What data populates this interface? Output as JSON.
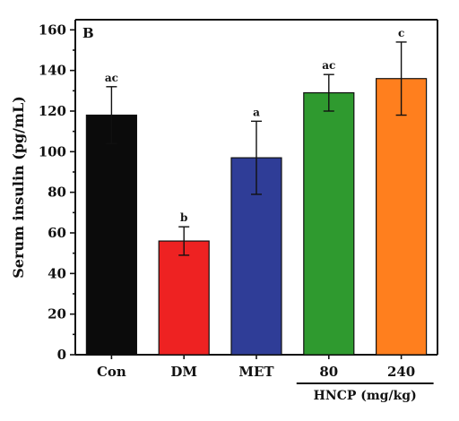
{
  "chart_data": {
    "type": "bar",
    "panel_label": "B",
    "categories": [
      "Con",
      "DM",
      "MET",
      "80",
      "240"
    ],
    "values": [
      118,
      56,
      97,
      129,
      136
    ],
    "errors": [
      14,
      7,
      18,
      9,
      18
    ],
    "significance_letters": [
      "ac",
      "b",
      "a",
      "ac",
      "c"
    ],
    "bar_colors": [
      "#0b0b0b",
      "#ee2222",
      "#2f3d97",
      "#2f9a2f",
      "#ff7f1e"
    ],
    "ylabel": "Serum insulin (pg/mL)",
    "xlabel": "",
    "ylim": [
      0,
      165
    ],
    "yticks": [
      0,
      20,
      40,
      60,
      80,
      100,
      120,
      140,
      160
    ],
    "group_label": "HNCP (mg/kg)",
    "grid": false,
    "legend": "none"
  }
}
